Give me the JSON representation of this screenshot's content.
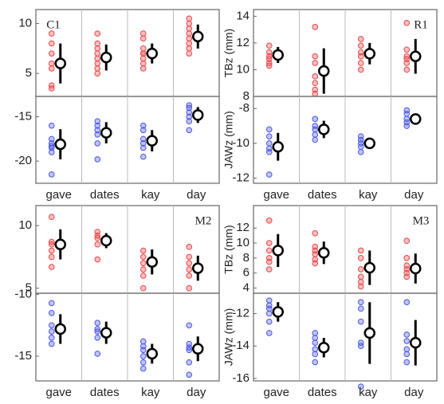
{
  "chart_data": [
    {
      "type": "scatter",
      "title": "C1",
      "categories": [
        "gave",
        "dates",
        "kay",
        "day"
      ],
      "panels": [
        {
          "color": "#e8474a",
          "ylim": [
            2.7,
            11.4
          ],
          "yticks": [
            5,
            10
          ],
          "points": [
            [
              3.5,
              3.8,
              5.5,
              6,
              7,
              8,
              9
            ],
            [
              5,
              5.5,
              6,
              6.5,
              7,
              7.5,
              8,
              9
            ],
            [
              5.5,
              6,
              6.5,
              7,
              7,
              7.5,
              8.5,
              9
            ],
            [
              7,
              7.5,
              8,
              8.5,
              9,
              9.5,
              10,
              10.5
            ]
          ],
          "means": [
            6,
            6.6,
            7,
            8.7
          ],
          "errors": [
            2,
            1.3,
            1,
            1.2
          ]
        },
        {
          "color": "#4a57e0",
          "ylim": [
            -22.5,
            -12.7
          ],
          "yticks": [
            -20,
            -15
          ],
          "points": [
            [
              -21.5,
              -19,
              -18.5,
              -18.3,
              -18,
              -17.5,
              -16
            ],
            [
              -19.8,
              -18,
              -17,
              -16.5,
              -16,
              -15.5
            ],
            [
              -19.5,
              -18.5,
              -18,
              -17.5,
              -16.5,
              -16
            ],
            [
              -16.5,
              -15.5,
              -15,
              -14.5,
              -14,
              -13.7
            ]
          ],
          "means": [
            -18.1,
            -16.8,
            -17.7,
            -14.8
          ],
          "errors": [
            1.7,
            1.2,
            1.2,
            0.9
          ]
        }
      ]
    },
    {
      "type": "scatter",
      "title": "R1",
      "categories": [
        "gave",
        "dates",
        "kay",
        "day"
      ],
      "panels": [
        {
          "ylabel": "TBz (mm)",
          "color": "#e8474a",
          "ylim": [
            8,
            14.5
          ],
          "yticks": [
            8,
            10,
            12,
            14
          ],
          "points": [
            [
              10.3,
              10.5,
              10.8,
              11,
              11.3,
              11.8
            ],
            [
              8.2,
              8.5,
              9,
              9.5,
              10.5,
              11,
              13.2
            ],
            [
              10,
              10.5,
              11,
              11.3,
              11.8,
              12.3
            ],
            [
              10,
              10.5,
              10.8,
              11,
              11.5,
              13.5
            ]
          ],
          "means": [
            11.1,
            9.9,
            11.2,
            11
          ],
          "errors": [
            0.6,
            1.7,
            0.8,
            1.3
          ]
        },
        {
          "ylabel": "JAWz (mm)",
          "color": "#4a57e0",
          "ylim": [
            -12.3,
            -7.3
          ],
          "yticks": [
            -12,
            -10,
            -8
          ],
          "points": [
            [
              -11.8,
              -10.5,
              -10.3,
              -10,
              -9.6,
              -9.2
            ],
            [
              -9.8,
              -9.5,
              -9.2,
              -9,
              -8.6
            ],
            [
              -10.5,
              -10.2,
              -10,
              -9.8,
              -9.6
            ],
            [
              -9,
              -8.8,
              -8.6,
              -8.3,
              -8.1
            ]
          ],
          "means": [
            -10.2,
            -9.2,
            -10,
            -8.6
          ],
          "errors": [
            0.8,
            0.5,
            0.3,
            0.3
          ]
        }
      ]
    },
    {
      "type": "scatter",
      "title": "M2",
      "categories": [
        "gave",
        "dates",
        "kay",
        "day"
      ],
      "panels": [
        {
          "color": "#e8474a",
          "ylim": [
            4.6,
            11.6
          ],
          "yticks": [
            5,
            10
          ],
          "points": [
            [
              6.7,
              7.5,
              8,
              8.5,
              8.7,
              10.7
            ],
            [
              7.3,
              8.5,
              9,
              9.2,
              9.5
            ],
            [
              5,
              6,
              6.5,
              7,
              7.5,
              8
            ],
            [
              5,
              6,
              6.5,
              7,
              7.5,
              8.3
            ]
          ],
          "means": [
            8.5,
            8.8,
            7.1,
            6.6
          ],
          "errors": [
            1.2,
            0.6,
            1,
            1
          ]
        },
        {
          "color": "#4a57e0",
          "ylim": [
            -17,
            -9.9
          ],
          "yticks": [
            -15,
            -10
          ],
          "points": [
            [
              -14,
              -13.5,
              -13,
              -12.5,
              -11.5,
              -10.7
            ],
            [
              -14.8,
              -13.5,
              -13,
              -12.8,
              -12.3
            ],
            [
              -16,
              -15.5,
              -15,
              -14.5,
              -14.2,
              -13.8
            ],
            [
              -16.5,
              -15.5,
              -14.5,
              -14.3,
              -14,
              -12.5
            ]
          ],
          "means": [
            -12.8,
            -13.1,
            -14.8,
            -14.4
          ],
          "errors": [
            1.2,
            0.9,
            0.8,
            1
          ]
        }
      ]
    },
    {
      "type": "scatter",
      "title": "M3",
      "categories": [
        "gave",
        "dates",
        "kay",
        "day"
      ],
      "panels": [
        {
          "ylabel": "TBz (mm)",
          "color": "#e8474a",
          "ylim": [
            3.3,
            15
          ],
          "yticks": [
            4,
            6,
            8,
            10,
            12
          ],
          "points": [
            [
              6.5,
              7.5,
              8,
              9,
              10,
              13
            ],
            [
              7.3,
              7.8,
              8.5,
              9,
              9.5,
              11.3
            ],
            [
              4.2,
              4.8,
              5.5,
              6.5,
              8,
              9
            ],
            [
              5.5,
              6,
              6.5,
              7,
              8,
              10.3
            ]
          ],
          "means": [
            9,
            8.7,
            6.7,
            6.6
          ],
          "errors": [
            2.2,
            1.5,
            2.3,
            2
          ]
        },
        {
          "ylabel": "JAWz (mm)",
          "color": "#4a57e0",
          "ylim": [
            -16.15,
            -10.75
          ],
          "yticks": [
            -16,
            -14,
            -12
          ],
          "points": [
            [
              -13.2,
              -12.5,
              -12,
              -11.7,
              -11.5,
              -11.2
            ],
            [
              -15,
              -14.5,
              -14.2,
              -13.8,
              -13.5,
              -13.2
            ],
            [
              -16.5,
              -14,
              -13.8,
              -12.5,
              -11.7,
              -11.3
            ],
            [
              -15,
              -14.5,
              -14.2,
              -13.7,
              -13.3,
              -11.3
            ]
          ],
          "means": [
            -11.9,
            -14.1,
            -13.2,
            -13.8
          ],
          "errors": [
            0.6,
            0.6,
            1.9,
            1.4
          ]
        }
      ]
    }
  ]
}
